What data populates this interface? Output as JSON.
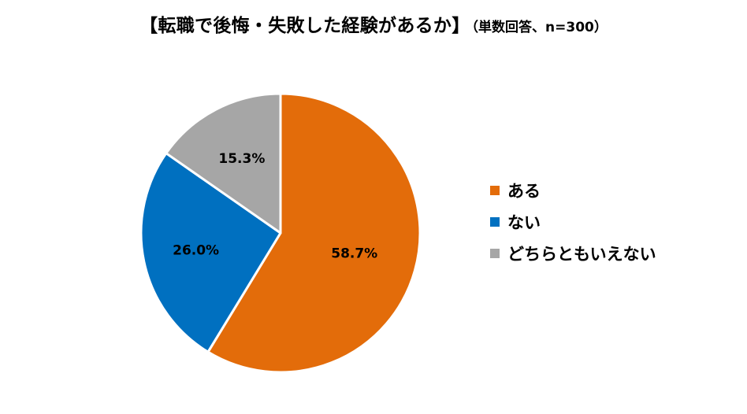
{
  "title": {
    "main": "【転職で後悔・失敗した経験があるか】",
    "sub": "（単数回答、n=300）"
  },
  "chart_data": {
    "type": "pie",
    "title": "【転職で後悔・失敗した経験があるか】（単数回答、n=300）",
    "categories": [
      "ある",
      "ない",
      "どちらともいえない"
    ],
    "values": [
      58.7,
      26.0,
      15.3
    ],
    "data_labels": [
      "58.7%",
      "26.0%",
      "15.3%"
    ],
    "colors": [
      "#E36C0A",
      "#0070C0",
      "#A6A6A6"
    ],
    "start_angle_deg": 0,
    "direction": "clockwise",
    "slice_border_color": "#FFFFFF",
    "legend_position": "right",
    "legend": [
      "ある",
      "ない",
      "どちらともいえない"
    ]
  }
}
